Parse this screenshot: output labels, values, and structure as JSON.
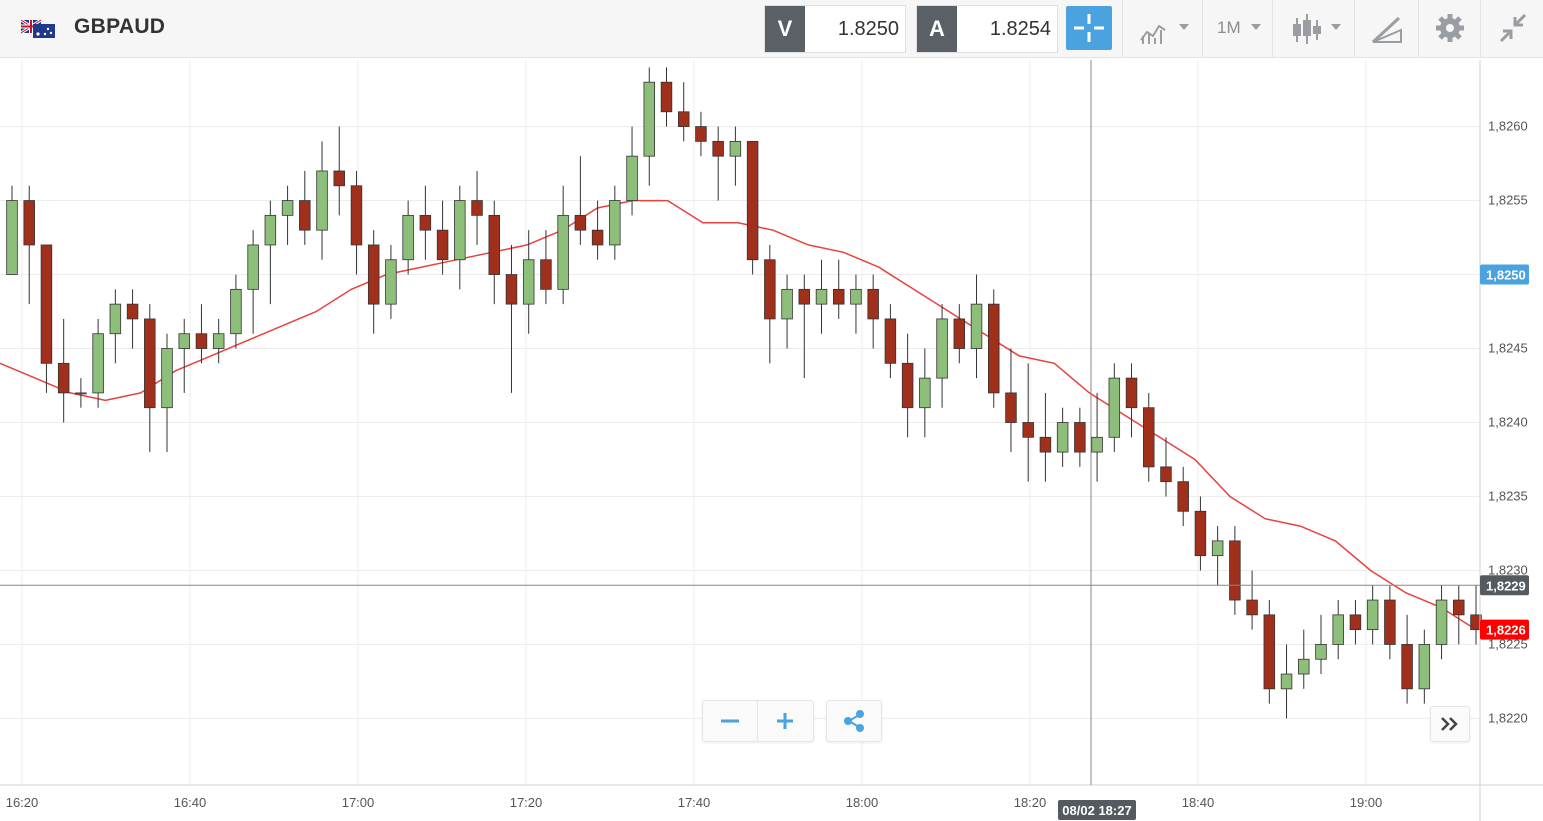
{
  "toolbar": {
    "symbol": "GBPAUD",
    "flag_icon": "uk-australia-flag-icon",
    "sell": {
      "label": "V",
      "price": "1.8250"
    },
    "buy": {
      "label": "A",
      "price": "1.8254"
    },
    "crosshair_icon": "crosshair-icon",
    "indicators_icon": "indicators-icon",
    "timeframe": "1M",
    "chart_type_icon": "candlestick-icon",
    "drawing_icon": "drawing-tools-icon",
    "settings_icon": "gear-icon",
    "collapse_icon": "collapse-arrows-icon"
  },
  "controls": {
    "zoom_out": "−",
    "zoom_in": "+",
    "share_icon": "share-icon",
    "scroll_icon": "double-chevron-right-icon"
  },
  "colors": {
    "bull": "#8dbf7b",
    "bear": "#a0301b",
    "ma": "#e8423e",
    "sell_tag": "#5b5f66",
    "accent": "#4aa3df",
    "last_price": "#ff0000"
  },
  "chart_data": {
    "type": "candlestick",
    "xlabel": "",
    "ylabel": "",
    "ylim": [
      1.82155,
      1.82645
    ],
    "y_ticks": [
      "1,8220",
      "1,8225",
      "1,8230",
      "1,8235",
      "1,8240",
      "1,8245",
      "1,8250",
      "1,8255",
      "1,8260"
    ],
    "x_ticks": [
      "16:20",
      "16:40",
      "17:00",
      "17:20",
      "17:40",
      "18:00",
      "18:20",
      "18:40",
      "19:00"
    ],
    "crosshair": {
      "time": "08/02 18:27",
      "price": "1,8229"
    },
    "price_badges": {
      "bid": "1,8250",
      "last": "1,8226"
    },
    "grid": true,
    "series": [
      {
        "name": "GBPAUD",
        "ohlc": [
          [
            1.825,
            1.8256,
            1.825,
            1.8255
          ],
          [
            1.8255,
            1.8256,
            1.8248,
            1.8252
          ],
          [
            1.8252,
            1.8252,
            1.8242,
            1.8244
          ],
          [
            1.8244,
            1.8247,
            1.824,
            1.8242
          ],
          [
            1.8242,
            1.8243,
            1.8241,
            1.8242
          ],
          [
            1.8242,
            1.8247,
            1.8241,
            1.8246
          ],
          [
            1.8246,
            1.8249,
            1.8244,
            1.8248
          ],
          [
            1.8248,
            1.8249,
            1.8245,
            1.8247
          ],
          [
            1.8247,
            1.8248,
            1.8238,
            1.8241
          ],
          [
            1.8241,
            1.8246,
            1.8238,
            1.8245
          ],
          [
            1.8245,
            1.8247,
            1.8242,
            1.8246
          ],
          [
            1.8246,
            1.8248,
            1.8244,
            1.8245
          ],
          [
            1.8245,
            1.8247,
            1.8244,
            1.8246
          ],
          [
            1.8246,
            1.825,
            1.8245,
            1.8249
          ],
          [
            1.8249,
            1.8253,
            1.8246,
            1.8252
          ],
          [
            1.8252,
            1.8255,
            1.8248,
            1.8254
          ],
          [
            1.8254,
            1.8256,
            1.8252,
            1.8255
          ],
          [
            1.8255,
            1.8257,
            1.8252,
            1.8253
          ],
          [
            1.8253,
            1.8259,
            1.8251,
            1.8257
          ],
          [
            1.8257,
            1.826,
            1.8254,
            1.8256
          ],
          [
            1.8256,
            1.8257,
            1.825,
            1.8252
          ],
          [
            1.8252,
            1.8253,
            1.8246,
            1.8248
          ],
          [
            1.8248,
            1.8252,
            1.8247,
            1.8251
          ],
          [
            1.8251,
            1.8255,
            1.825,
            1.8254
          ],
          [
            1.8254,
            1.8256,
            1.8251,
            1.8253
          ],
          [
            1.8253,
            1.8255,
            1.825,
            1.8251
          ],
          [
            1.8251,
            1.8256,
            1.8249,
            1.8255
          ],
          [
            1.8255,
            1.8257,
            1.8252,
            1.8254
          ],
          [
            1.8254,
            1.8255,
            1.8248,
            1.825
          ],
          [
            1.825,
            1.8252,
            1.8242,
            1.8248
          ],
          [
            1.8248,
            1.8253,
            1.8246,
            1.8251
          ],
          [
            1.8251,
            1.8253,
            1.8248,
            1.8249
          ],
          [
            1.8249,
            1.8256,
            1.8248,
            1.8254
          ],
          [
            1.8254,
            1.8258,
            1.8252,
            1.8253
          ],
          [
            1.8253,
            1.8255,
            1.8251,
            1.8252
          ],
          [
            1.8252,
            1.8256,
            1.8251,
            1.8255
          ],
          [
            1.8255,
            1.826,
            1.8254,
            1.8258
          ],
          [
            1.8258,
            1.8264,
            1.8256,
            1.8263
          ],
          [
            1.8263,
            1.8264,
            1.826,
            1.8261
          ],
          [
            1.8261,
            1.8263,
            1.8259,
            1.826
          ],
          [
            1.826,
            1.8261,
            1.8258,
            1.8259
          ],
          [
            1.8259,
            1.826,
            1.8255,
            1.8258
          ],
          [
            1.8258,
            1.826,
            1.8256,
            1.8259
          ],
          [
            1.8259,
            1.8259,
            1.825,
            1.8251
          ],
          [
            1.8251,
            1.8252,
            1.8244,
            1.8247
          ],
          [
            1.8247,
            1.825,
            1.8245,
            1.8249
          ],
          [
            1.8249,
            1.825,
            1.8243,
            1.8248
          ],
          [
            1.8248,
            1.8251,
            1.8246,
            1.8249
          ],
          [
            1.8249,
            1.8251,
            1.8247,
            1.8248
          ],
          [
            1.8248,
            1.825,
            1.8246,
            1.8249
          ],
          [
            1.8249,
            1.825,
            1.8245,
            1.8247
          ],
          [
            1.8247,
            1.8248,
            1.8243,
            1.8244
          ],
          [
            1.8244,
            1.8246,
            1.8239,
            1.8241
          ],
          [
            1.8241,
            1.8245,
            1.8239,
            1.8243
          ],
          [
            1.8243,
            1.8248,
            1.8241,
            1.8247
          ],
          [
            1.8247,
            1.8248,
            1.8244,
            1.8245
          ],
          [
            1.8245,
            1.825,
            1.8243,
            1.8248
          ],
          [
            1.8248,
            1.8249,
            1.8241,
            1.8242
          ],
          [
            1.8242,
            1.8245,
            1.8238,
            1.824
          ],
          [
            1.824,
            1.8244,
            1.8236,
            1.8239
          ],
          [
            1.8239,
            1.8242,
            1.8236,
            1.8238
          ],
          [
            1.8238,
            1.8241,
            1.8237,
            1.824
          ],
          [
            1.824,
            1.8241,
            1.8237,
            1.8238
          ],
          [
            1.8238,
            1.8242,
            1.8236,
            1.8239
          ],
          [
            1.8239,
            1.8244,
            1.8238,
            1.8243
          ],
          [
            1.8243,
            1.8244,
            1.8239,
            1.8241
          ],
          [
            1.8241,
            1.8242,
            1.8236,
            1.8237
          ],
          [
            1.8237,
            1.8239,
            1.8235,
            1.8236
          ],
          [
            1.8236,
            1.8237,
            1.8233,
            1.8234
          ],
          [
            1.8234,
            1.8235,
            1.823,
            1.8231
          ],
          [
            1.8231,
            1.8233,
            1.8229,
            1.8232
          ],
          [
            1.8232,
            1.8233,
            1.8227,
            1.8228
          ],
          [
            1.8228,
            1.823,
            1.8226,
            1.8227
          ],
          [
            1.8227,
            1.8228,
            1.8221,
            1.8222
          ],
          [
            1.8222,
            1.8225,
            1.822,
            1.8223
          ],
          [
            1.8223,
            1.8226,
            1.8222,
            1.8224
          ],
          [
            1.8224,
            1.8227,
            1.8223,
            1.8225
          ],
          [
            1.8225,
            1.8228,
            1.8224,
            1.8227
          ],
          [
            1.8227,
            1.8228,
            1.8225,
            1.8226
          ],
          [
            1.8226,
            1.8229,
            1.8225,
            1.8228
          ],
          [
            1.8228,
            1.8229,
            1.8224,
            1.8225
          ],
          [
            1.8225,
            1.8227,
            1.8221,
            1.8222
          ],
          [
            1.8222,
            1.8226,
            1.8221,
            1.8225
          ],
          [
            1.8225,
            1.8229,
            1.8224,
            1.8228
          ],
          [
            1.8228,
            1.8229,
            1.8225,
            1.8227
          ],
          [
            1.8227,
            1.8229,
            1.8225,
            1.8226
          ]
        ]
      },
      {
        "name": "MA",
        "values": [
          1.8244,
          1.8243,
          1.8242,
          1.82415,
          1.8242,
          1.82435,
          1.82445,
          1.82455,
          1.82465,
          1.82475,
          1.8249,
          1.825,
          1.82505,
          1.8251,
          1.82515,
          1.8252,
          1.8253,
          1.82545,
          1.8255,
          1.8255,
          1.82535,
          1.82535,
          1.8253,
          1.8252,
          1.82515,
          1.82505,
          1.8249,
          1.82475,
          1.8246,
          1.82445,
          1.8244,
          1.8242,
          1.82405,
          1.8239,
          1.82375,
          1.8235,
          1.82335,
          1.8233,
          1.8232,
          1.823,
          1.82285,
          1.82275,
          1.8226
        ]
      }
    ]
  }
}
